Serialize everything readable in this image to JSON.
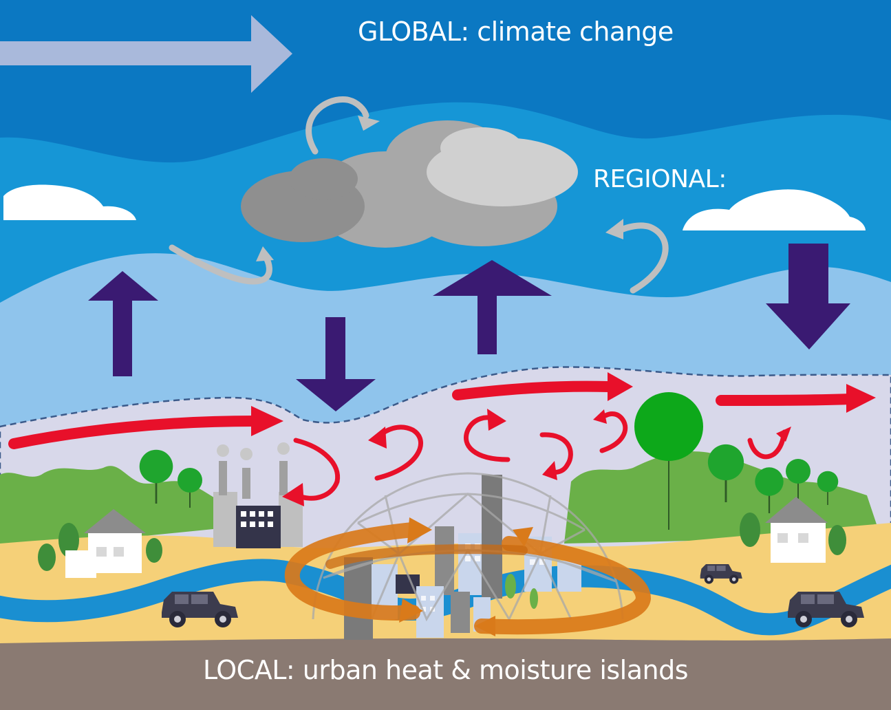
{
  "labels": {
    "global": "GLOBAL: climate change",
    "regional": "REGIONAL:",
    "local": "LOCAL: urban heat & moisture islands"
  },
  "colors": {
    "global_sky": "#0b78c2",
    "regional_sky": "#1696d6",
    "lower_sky": "#8fc4ec",
    "boundary_layer": "#d8d8ea",
    "hills": "#6ab048",
    "ground": "#f5d078",
    "river": "#1a8fd1",
    "soil": "#8a7a72",
    "vertical_flux_arrow": "#3a1a72",
    "advection_arrow": "#e8102a",
    "heat_island_swirl": "#d97a1a",
    "cloud_dark": "#a4a4a4",
    "cloud_light": "#cdcdcd",
    "circulation_arrow": "#bfbfbf"
  },
  "icons": [
    "large-right-arrow",
    "cloud",
    "house",
    "factory",
    "car",
    "tree",
    "dome",
    "skyscraper"
  ]
}
